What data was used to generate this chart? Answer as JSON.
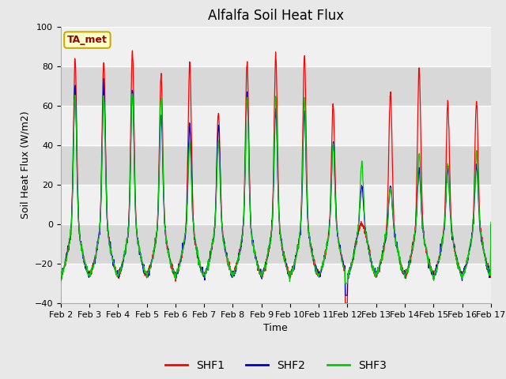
{
  "title": "Alfalfa Soil Heat Flux",
  "ylabel": "Soil Heat Flux (W/m2)",
  "xlabel": "Time",
  "ylim": [
    -40,
    100
  ],
  "yticks": [
    -40,
    -20,
    0,
    20,
    40,
    60,
    80,
    100
  ],
  "x_labels": [
    "Feb 2",
    "Feb 3",
    "Feb 4",
    "Feb 5",
    "Feb 6",
    "Feb 7",
    "Feb 8",
    "Feb 9",
    "Feb 10",
    "Feb 11",
    "Feb 12",
    "Feb 13",
    "Feb 14",
    "Feb 15",
    "Feb 16",
    "Feb 17"
  ],
  "shf1_color": "#ff0000",
  "shf2_color": "#0000cc",
  "shf3_color": "#00cc00",
  "figure_bg_color": "#e8e8e8",
  "plot_bg_color": "#d8d8d8",
  "legend_label": "TA_met",
  "legend_bg": "#ffffcc",
  "legend_edge": "#ccaa00",
  "grid_color": "#ffffff",
  "band_color_light": "#f0f0f0",
  "band_color_dark": "#d8d8d8",
  "title_fontsize": 12,
  "axis_label_fontsize": 9,
  "tick_fontsize": 8,
  "n_days": 15,
  "shf1_peaks": [
    83,
    83,
    88,
    76,
    82,
    56,
    82,
    86,
    85,
    60,
    0,
    67,
    79,
    61,
    62,
    62
  ],
  "shf2_peaks": [
    70,
    70,
    68,
    56,
    50,
    50,
    65,
    58,
    57,
    42,
    19,
    19,
    27,
    28,
    30,
    28
  ],
  "shf3_peaks": [
    65,
    65,
    68,
    65,
    41,
    41,
    63,
    64,
    63,
    40,
    31,
    19,
    35,
    30,
    36,
    35
  ]
}
